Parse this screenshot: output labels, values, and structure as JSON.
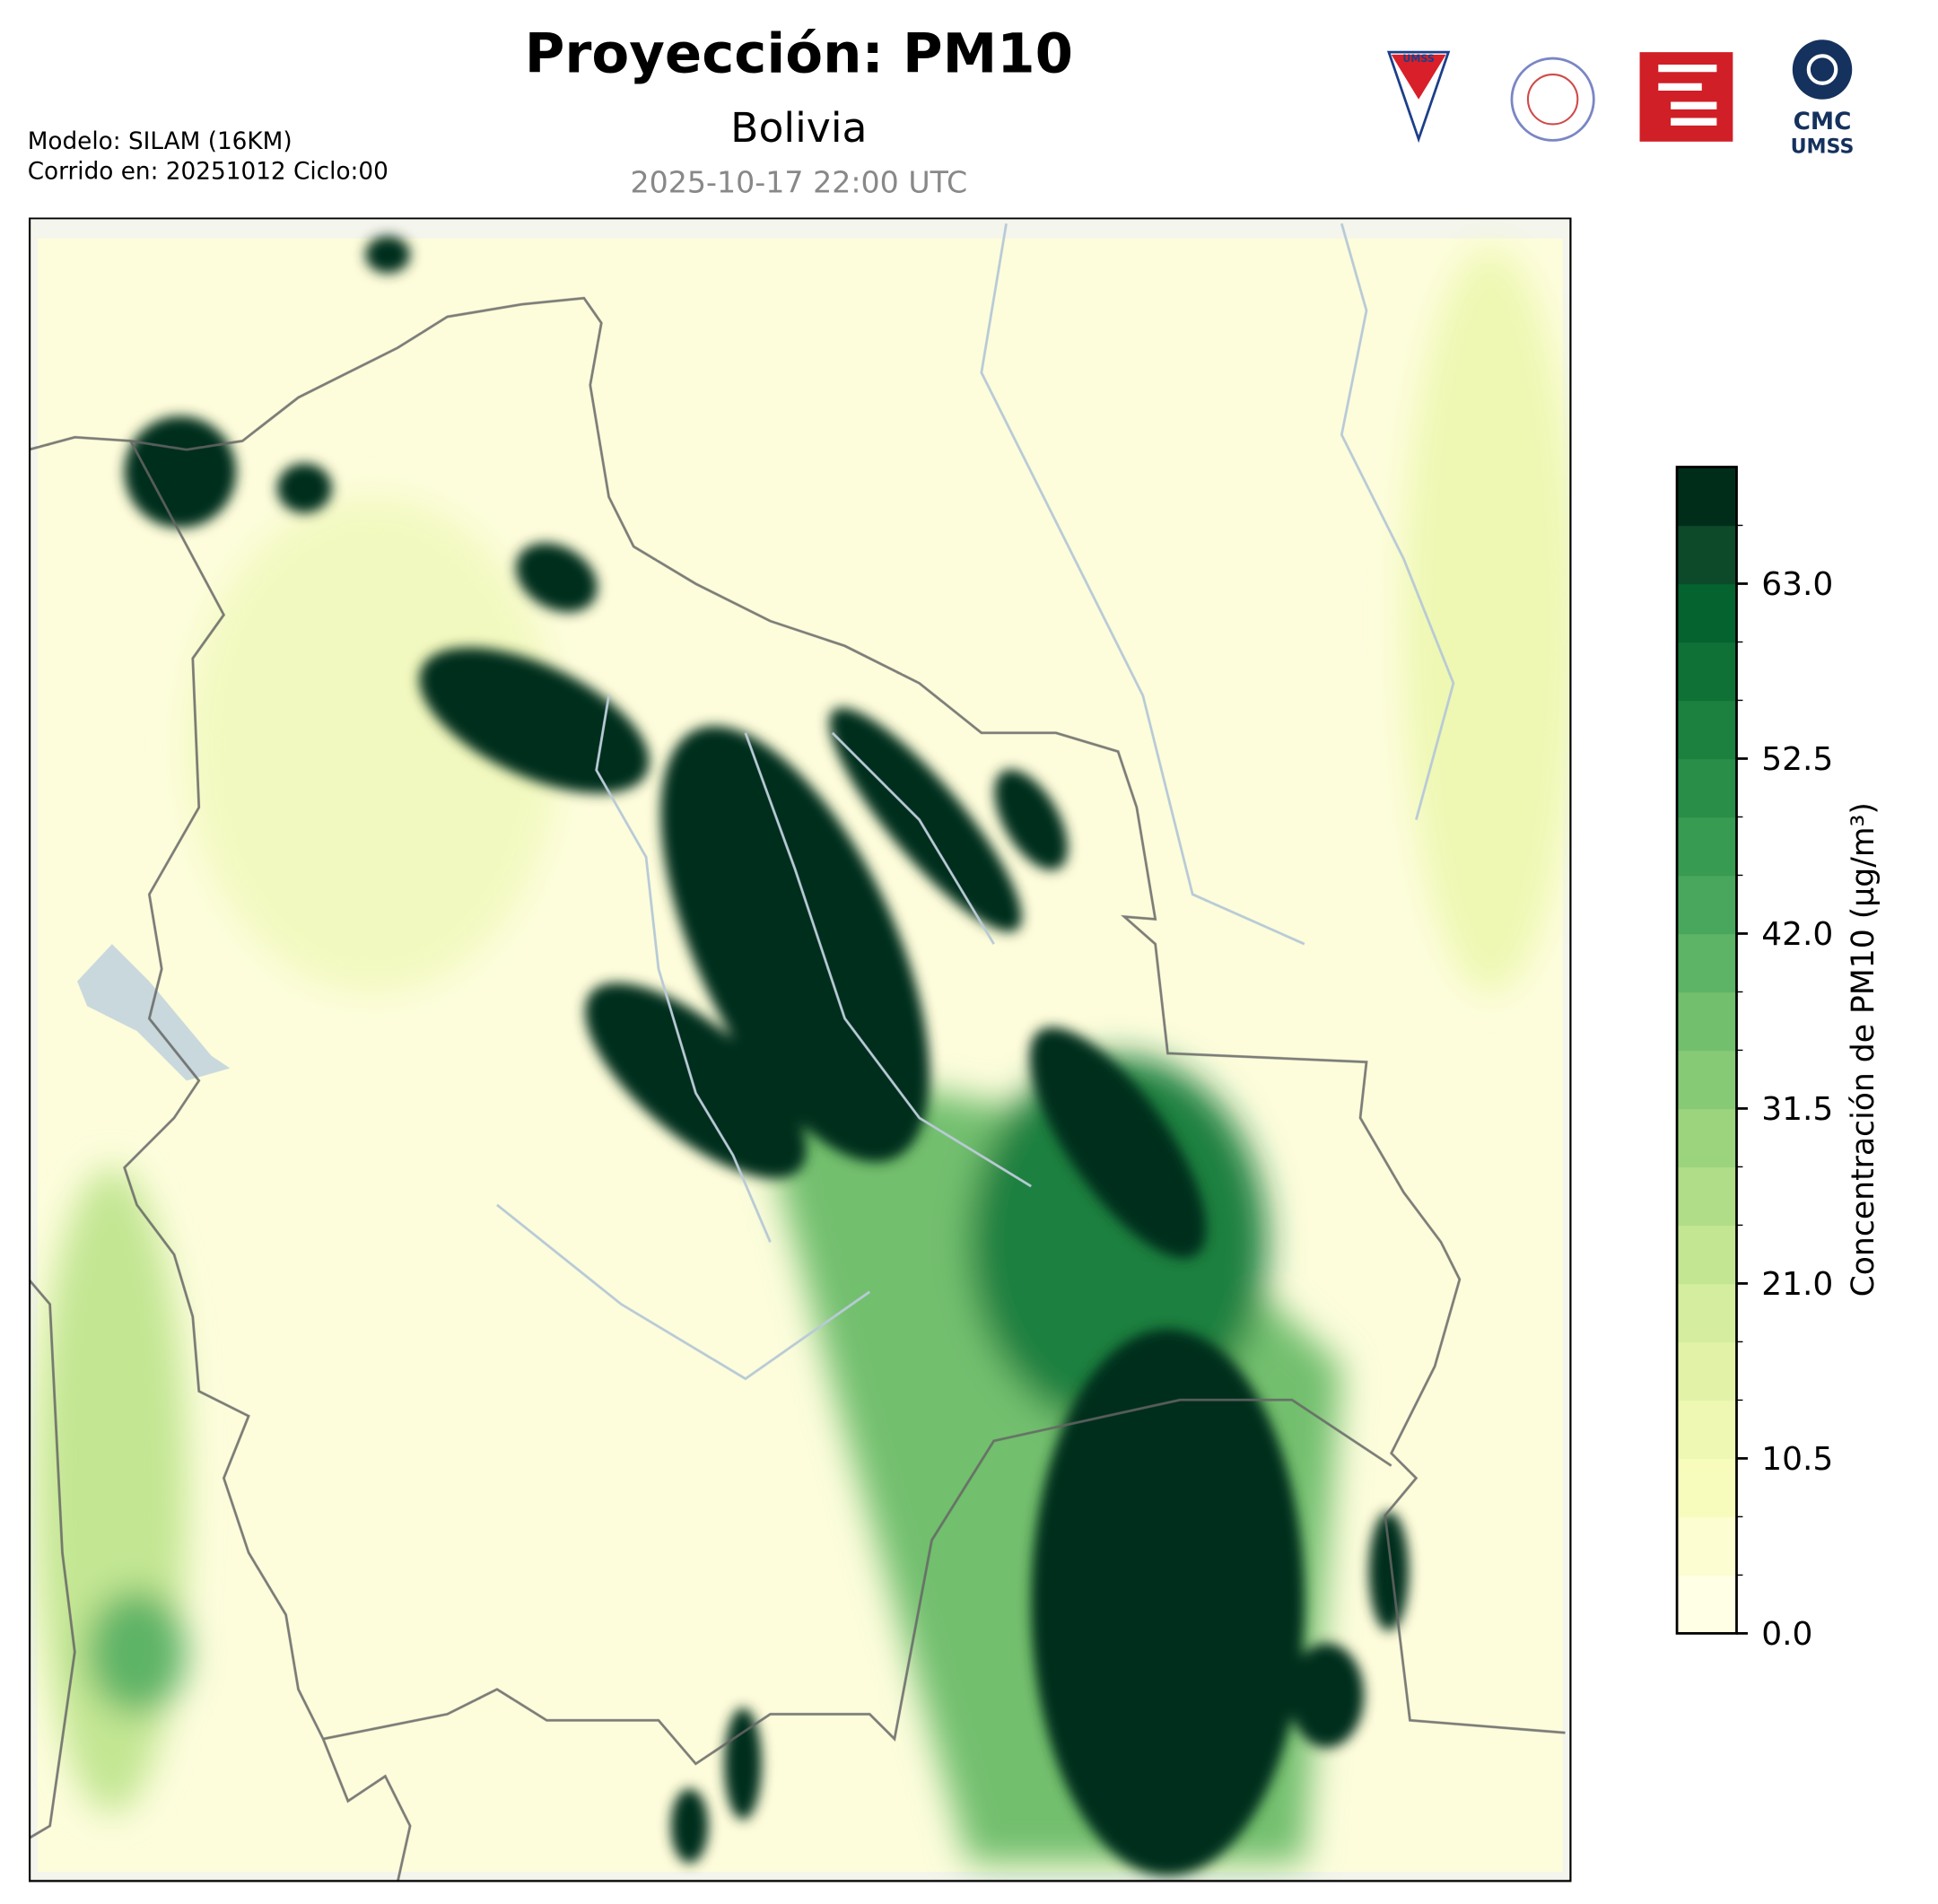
{
  "header": {
    "title": "Proyección: PM10",
    "subtitle": "Bolivia",
    "timestamp": "2025-10-17 22:00 UTC",
    "model": "Modelo: SILAM (16KM)",
    "run": "Corrido en: 20251012 Ciclo:00"
  },
  "logos": {
    "left": "UMSS",
    "right_top": "CMC",
    "right_bottom": "UMSS"
  },
  "colorbar": {
    "label": "Concentración de PM10 (µg/m³)",
    "lim": [
      0,
      70
    ],
    "ticks": [
      {
        "value": 0,
        "label": "0.0"
      },
      {
        "value": 10.5,
        "label": "10.5"
      },
      {
        "value": 21,
        "label": "21.0"
      },
      {
        "value": 31.5,
        "label": "31.5"
      },
      {
        "value": 42,
        "label": "42.0"
      },
      {
        "value": 52.5,
        "label": "52.5"
      },
      {
        "value": 63,
        "label": "63.0"
      }
    ],
    "colors": [
      "#ffffe5",
      "#fcfdd0",
      "#f7fcbd",
      "#eef8b2",
      "#e2f3a8",
      "#d4ed9e",
      "#c3e693",
      "#b0dd88",
      "#9cd47e",
      "#87ca76",
      "#72bf6e",
      "#5db366",
      "#48a75d",
      "#389b52",
      "#298e48",
      "#1c803f",
      "#0f7136",
      "#05632f",
      "#0d4a29",
      "#002d1a"
    ]
  }
}
